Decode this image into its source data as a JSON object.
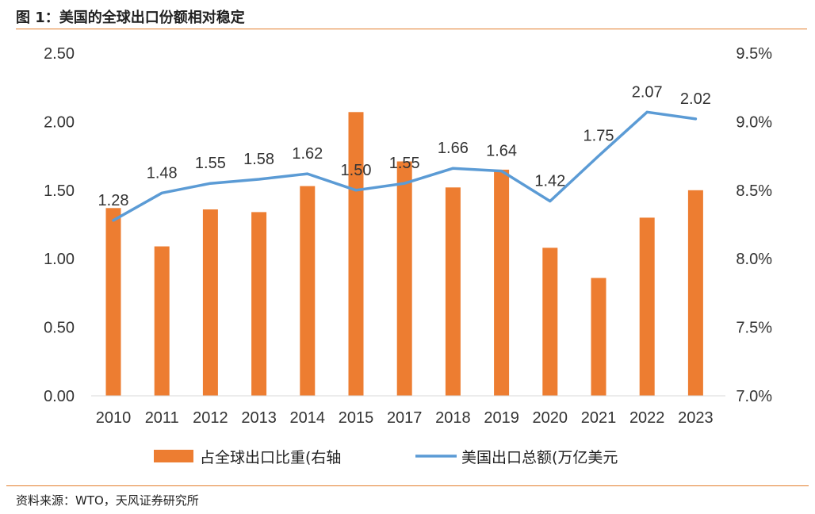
{
  "figure": {
    "title": "图 1：美国的全球出口份额相对稳定",
    "source": "资料来源：WTO，天风证券研究所"
  },
  "chart_data": {
    "type": "bar+line",
    "title": "图 1：美国的全球出口份额相对稳定",
    "categories": [
      "2010",
      "2011",
      "2012",
      "2013",
      "2014",
      "2015",
      "2017",
      "2018",
      "2019",
      "2020",
      "2021",
      "2022",
      "2023"
    ],
    "series": [
      {
        "name": "占全球出口比重(右轴",
        "kind": "bar",
        "axis": "right",
        "color": "#ed7d31",
        "values": [
          8.37,
          8.09,
          8.36,
          8.34,
          8.53,
          9.07,
          8.71,
          8.52,
          8.65,
          8.08,
          7.86,
          8.3,
          8.5
        ]
      },
      {
        "name": "美国出口总额(万亿美元",
        "kind": "line",
        "axis": "left",
        "color": "#5b9bd5",
        "values": [
          1.28,
          1.48,
          1.55,
          1.58,
          1.62,
          1.5,
          1.55,
          1.66,
          1.64,
          1.42,
          1.75,
          2.07,
          2.02
        ],
        "labels": [
          "1.28",
          "1.48",
          "1.55",
          "1.58",
          "1.62",
          "1.50",
          "1.55",
          "1.66",
          "1.64",
          "1.42",
          "1.75",
          "2.07",
          "2.02"
        ]
      }
    ],
    "left_axis": {
      "min": 0,
      "max": 2.5,
      "ticks": [
        "0.00",
        "0.50",
        "1.00",
        "1.50",
        "2.00",
        "2.50"
      ]
    },
    "right_axis": {
      "min": 7.0,
      "max": 9.5,
      "ticks": [
        "7.0%",
        "7.5%",
        "8.0%",
        "8.5%",
        "9.0%",
        "9.5%"
      ]
    },
    "grid": false,
    "legend_position": "bottom"
  }
}
